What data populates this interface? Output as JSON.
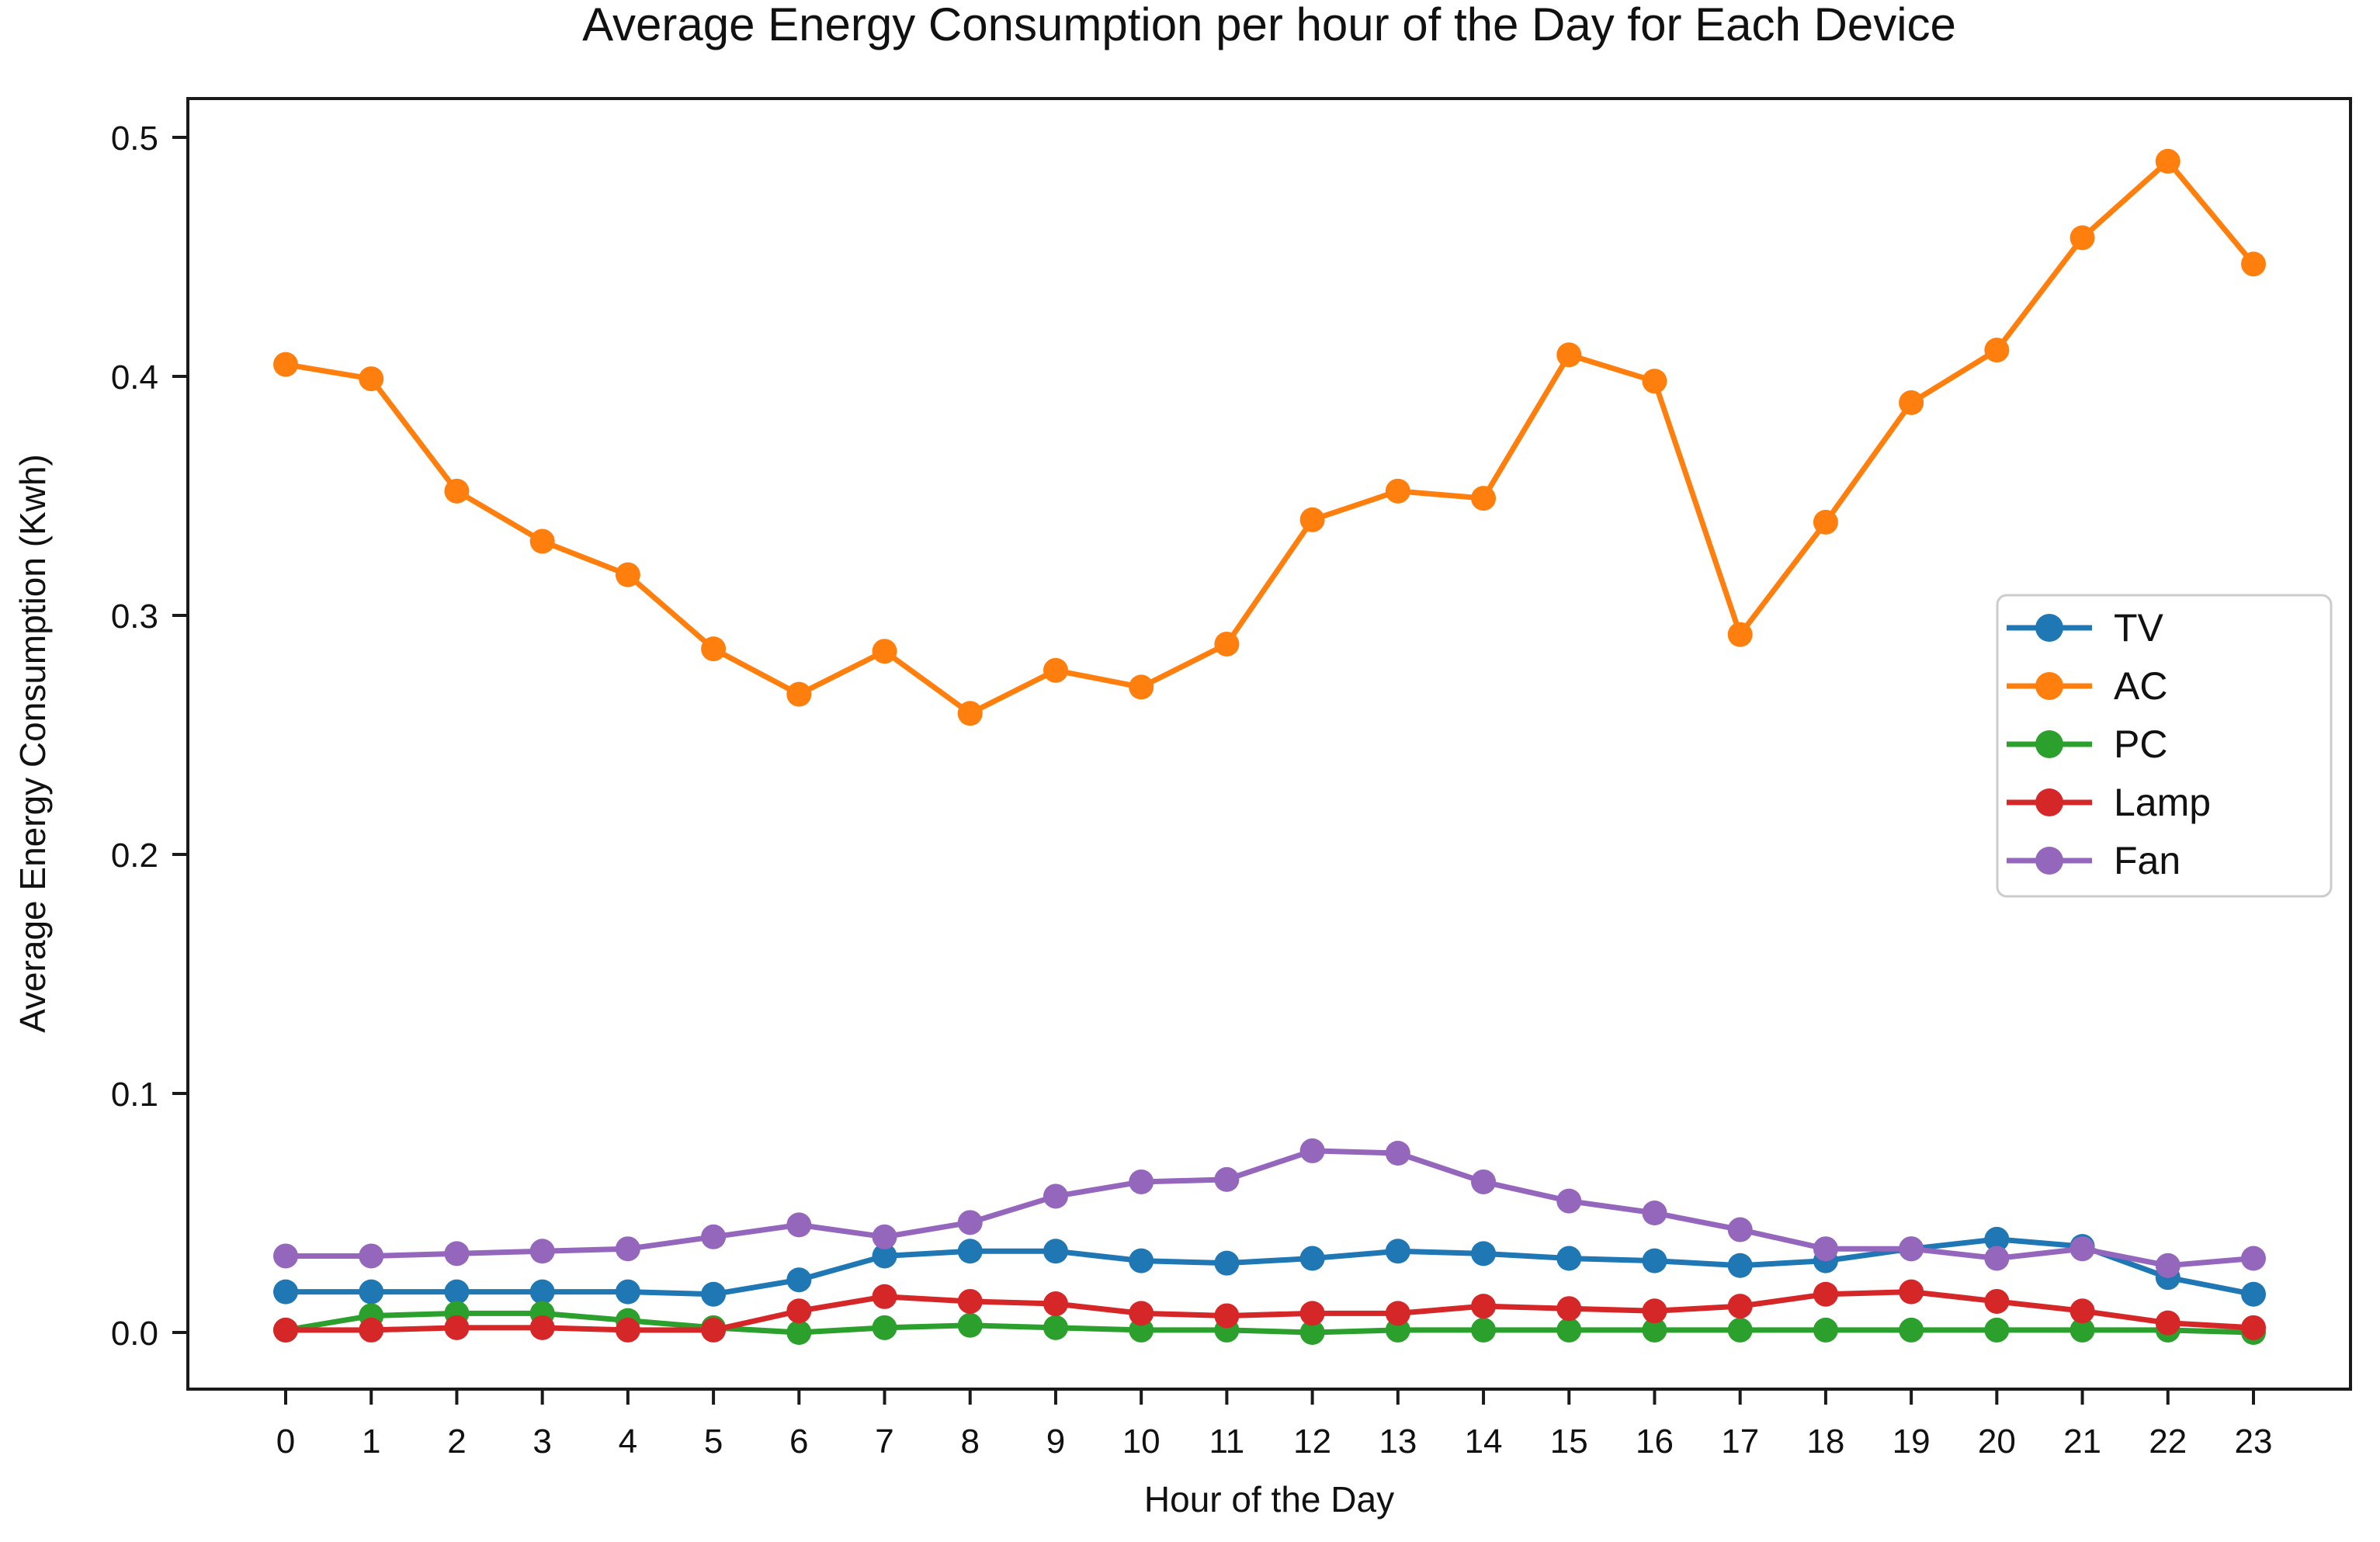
{
  "title": "Average Energy Consumption per hour of the Day for Each Device",
  "chart_data": {
    "type": "line",
    "title": "Average Energy Consumption per hour of the Day for Each Device",
    "xlabel": "Hour of the Day",
    "ylabel": "Average Energy Consumption (Kwh)",
    "x": [
      0,
      1,
      2,
      3,
      4,
      5,
      6,
      7,
      8,
      9,
      10,
      11,
      12,
      13,
      14,
      15,
      16,
      17,
      18,
      19,
      20,
      21,
      22,
      23
    ],
    "xtick_labels": [
      "0",
      "1",
      "2",
      "3",
      "4",
      "5",
      "6",
      "7",
      "8",
      "9",
      "10",
      "11",
      "12",
      "13",
      "14",
      "15",
      "16",
      "17",
      "18",
      "19",
      "20",
      "21",
      "22",
      "23"
    ],
    "ylim": [
      0.0,
      0.5
    ],
    "yticks": [
      0.0,
      0.1,
      0.2,
      0.3,
      0.4,
      0.5
    ],
    "ytick_labels": [
      "0.0",
      "0.1",
      "0.2",
      "0.3",
      "0.4",
      "0.5"
    ],
    "grid": false,
    "legend_position": "center-right",
    "marker": "circle",
    "series": [
      {
        "name": "TV",
        "color": "#1f77b4",
        "values": [
          0.017,
          0.017,
          0.017,
          0.017,
          0.017,
          0.016,
          0.022,
          0.032,
          0.034,
          0.034,
          0.03,
          0.029,
          0.031,
          0.034,
          0.033,
          0.031,
          0.03,
          0.028,
          0.03,
          0.035,
          0.039,
          0.036,
          0.023,
          0.016
        ]
      },
      {
        "name": "AC",
        "color": "#ff7f0e",
        "values": [
          0.405,
          0.399,
          0.352,
          0.331,
          0.317,
          0.286,
          0.267,
          0.285,
          0.259,
          0.277,
          0.27,
          0.288,
          0.34,
          0.352,
          0.349,
          0.409,
          0.398,
          0.292,
          0.339,
          0.389,
          0.411,
          0.458,
          0.49,
          0.447
        ]
      },
      {
        "name": "PC",
        "color": "#2ca02c",
        "values": [
          0.001,
          0.007,
          0.008,
          0.008,
          0.005,
          0.002,
          0.0,
          0.002,
          0.003,
          0.002,
          0.001,
          0.001,
          0.0,
          0.001,
          0.001,
          0.001,
          0.001,
          0.001,
          0.001,
          0.001,
          0.001,
          0.001,
          0.001,
          0.0
        ]
      },
      {
        "name": "Lamp",
        "color": "#d62728",
        "values": [
          0.001,
          0.001,
          0.002,
          0.002,
          0.001,
          0.001,
          0.009,
          0.015,
          0.013,
          0.012,
          0.008,
          0.007,
          0.008,
          0.008,
          0.011,
          0.01,
          0.009,
          0.011,
          0.016,
          0.017,
          0.013,
          0.009,
          0.004,
          0.002
        ]
      },
      {
        "name": "Fan",
        "color": "#9467bd",
        "values": [
          0.032,
          0.032,
          0.033,
          0.034,
          0.035,
          0.04,
          0.045,
          0.04,
          0.046,
          0.057,
          0.063,
          0.064,
          0.076,
          0.075,
          0.063,
          0.055,
          0.05,
          0.043,
          0.035,
          0.035,
          0.031,
          0.035,
          0.028,
          0.031
        ]
      }
    ],
    "spine_color": "#1a1a1a",
    "legend_border_color": "#cccccc"
  }
}
